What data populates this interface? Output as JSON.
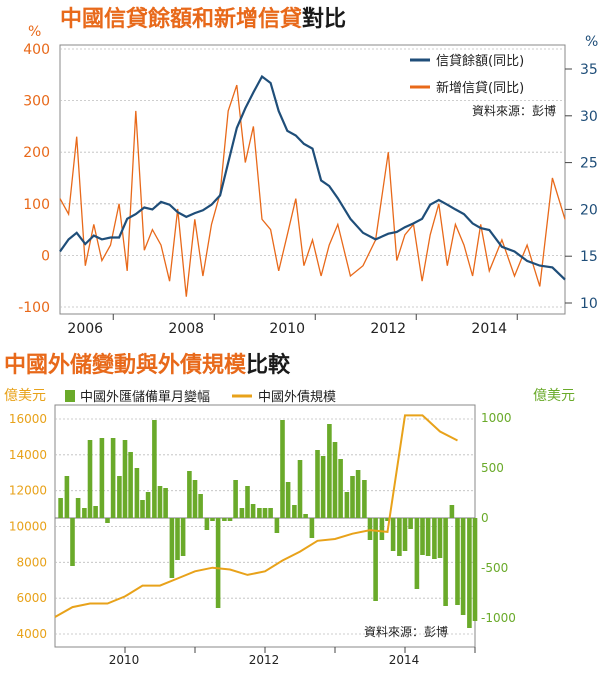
{
  "chart_data": [
    {
      "type": "line",
      "title_part1": "中國信貸餘額和新增信貸",
      "title_part2": "對比",
      "left_unit": "%",
      "right_unit": "%",
      "source": "資料來源：彭博",
      "x_ticks": [
        "2006",
        "2008",
        "2010",
        "2012",
        "2014"
      ],
      "y_left_ticks": [
        "400",
        "300",
        "200",
        "100",
        "0",
        "-100"
      ],
      "y_right_ticks": [
        "35",
        "30",
        "25",
        "20",
        "15",
        "10"
      ],
      "ylim_left": [
        -100,
        400
      ],
      "ylim_right": [
        10,
        35
      ],
      "x_range": [
        2005.5,
        2015.5
      ],
      "grid": true,
      "legend_position": "top-right",
      "series": [
        {
          "name": "信貸餘額(同比)",
          "axis": "right",
          "color": "#1f4e79",
          "x": [
            2005.5,
            2005.67,
            2005.83,
            2006.0,
            2006.17,
            2006.33,
            2006.5,
            2006.67,
            2006.83,
            2007.0,
            2007.17,
            2007.33,
            2007.5,
            2007.67,
            2007.83,
            2008.0,
            2008.17,
            2008.33,
            2008.5,
            2008.67,
            2008.83,
            2009.0,
            2009.17,
            2009.33,
            2009.5,
            2009.67,
            2009.83,
            2010.0,
            2010.17,
            2010.33,
            2010.5,
            2010.67,
            2010.83,
            2011.0,
            2011.25,
            2011.5,
            2011.75,
            2012.0,
            2012.17,
            2012.33,
            2012.5,
            2012.67,
            2012.83,
            2013.0,
            2013.17,
            2013.33,
            2013.5,
            2013.67,
            2013.83,
            2014.0,
            2014.25,
            2014.5,
            2014.75,
            2015.0,
            2015.25,
            2015.5
          ],
          "values": [
            15.5,
            16.8,
            17.5,
            16.3,
            17.2,
            16.8,
            17.0,
            17.0,
            19.0,
            19.5,
            20.2,
            20.0,
            20.8,
            20.5,
            19.7,
            19.2,
            19.6,
            19.9,
            20.5,
            21.5,
            25.0,
            28.7,
            30.8,
            32.5,
            34.2,
            33.5,
            30.5,
            28.4,
            27.9,
            27.0,
            26.5,
            23.1,
            22.5,
            21.2,
            19.0,
            17.5,
            16.8,
            17.4,
            17.6,
            18.1,
            18.5,
            19.0,
            20.5,
            21.0,
            20.5,
            20.0,
            19.5,
            18.5,
            18.0,
            17.8,
            16.0,
            15.5,
            14.5,
            14.0,
            13.8,
            12.5
          ],
          "_comment_values": "approximate reading from chart"
        },
        {
          "name": "新增信貸(同比)",
          "axis": "left",
          "color": "#e8691a",
          "x": [
            2005.5,
            2005.67,
            2005.83,
            2006.0,
            2006.17,
            2006.33,
            2006.5,
            2006.67,
            2006.83,
            2007.0,
            2007.17,
            2007.33,
            2007.5,
            2007.67,
            2007.83,
            2008.0,
            2008.17,
            2008.33,
            2008.5,
            2008.67,
            2008.83,
            2009.0,
            2009.17,
            2009.33,
            2009.5,
            2009.67,
            2009.83,
            2010.0,
            2010.17,
            2010.33,
            2010.5,
            2010.67,
            2010.83,
            2011.0,
            2011.25,
            2011.5,
            2011.75,
            2012.0,
            2012.17,
            2012.33,
            2012.5,
            2012.67,
            2012.83,
            2013.0,
            2013.17,
            2013.33,
            2013.5,
            2013.67,
            2013.83,
            2014.0,
            2014.25,
            2014.5,
            2014.75,
            2015.0,
            2015.25,
            2015.5
          ],
          "values": [
            110,
            80,
            230,
            -20,
            60,
            -10,
            20,
            100,
            -30,
            280,
            10,
            50,
            20,
            -50,
            90,
            -80,
            70,
            -40,
            60,
            120,
            280,
            330,
            180,
            250,
            70,
            50,
            -30,
            40,
            110,
            -20,
            30,
            -40,
            20,
            60,
            -40,
            -20,
            30,
            200,
            -10,
            40,
            60,
            -50,
            40,
            100,
            -20,
            60,
            20,
            -40,
            60,
            -30,
            30,
            -40,
            20,
            -60,
            150,
            70
          ],
          "_comment_values": "approximate reading from chart"
        }
      ]
    },
    {
      "type": "bar",
      "title_part1": "中國外儲變動與外債規模",
      "title_part2": "比較",
      "left_unit": "億美元",
      "right_unit": "億美元",
      "source": "資料來源：彭博",
      "x_ticks": [
        "2010",
        "2012",
        "2014"
      ],
      "y_left_ticks": [
        "16000",
        "14000",
        "12000",
        "10000",
        "8000",
        "6000",
        "4000"
      ],
      "y_right_ticks": [
        "1000",
        "500",
        "0",
        "-500",
        "-1000"
      ],
      "ylim_left": [
        4000,
        16800
      ],
      "ylim_right": [
        -1200,
        1050
      ],
      "x_range": [
        2009.5,
        2015.5
      ],
      "grid": true,
      "legend_position": "top",
      "series": [
        {
          "name": "中國外匯儲備單月變幅",
          "axis": "right",
          "color": "#6aaa2a",
          "x": [
            2009.58,
            2009.67,
            2009.75,
            2009.83,
            2009.92,
            2010.0,
            2010.08,
            2010.17,
            2010.25,
            2010.33,
            2010.42,
            2010.5,
            2010.58,
            2010.67,
            2010.75,
            2010.83,
            2010.92,
            2011.0,
            2011.08,
            2011.17,
            2011.25,
            2011.33,
            2011.42,
            2011.5,
            2011.58,
            2011.67,
            2011.75,
            2011.83,
            2011.92,
            2012.0,
            2012.08,
            2012.17,
            2012.25,
            2012.33,
            2012.42,
            2012.5,
            2012.58,
            2012.67,
            2012.75,
            2012.83,
            2012.92,
            2013.0,
            2013.08,
            2013.17,
            2013.25,
            2013.33,
            2013.42,
            2013.5,
            2013.58,
            2013.67,
            2013.75,
            2013.83,
            2013.92,
            2014.0,
            2014.08,
            2014.17,
            2014.25,
            2014.33,
            2014.42,
            2014.5,
            2014.58,
            2014.67,
            2014.75,
            2014.83,
            2014.92,
            2015.0,
            2015.08,
            2015.17,
            2015.25,
            2015.33,
            2015.42,
            2015.5
          ],
          "values": [
            200,
            420,
            -480,
            200,
            100,
            780,
            120,
            800,
            -50,
            800,
            420,
            780,
            660,
            500,
            180,
            260,
            980,
            320,
            300,
            -600,
            -420,
            -380,
            470,
            380,
            240,
            -120,
            -30,
            -900,
            -30,
            -30,
            380,
            100,
            320,
            140,
            100,
            100,
            100,
            -150,
            980,
            360,
            130,
            580,
            40,
            -200,
            680,
            620,
            940,
            760,
            590,
            260,
            420,
            480,
            380,
            -220,
            -830,
            -220,
            -30,
            -330,
            -380,
            -330,
            -110,
            -710,
            -370,
            -380,
            -410,
            -400,
            -880,
            130,
            -870,
            -970,
            -1100,
            -1030
          ],
          "_comment_values": "approximate reading from chart"
        },
        {
          "name": "中國外債規模",
          "axis": "left",
          "color": "#e8a21a",
          "x": [
            2009.5,
            2009.75,
            2010.0,
            2010.25,
            2010.5,
            2010.75,
            2011.0,
            2011.25,
            2011.5,
            2011.75,
            2012.0,
            2012.25,
            2012.5,
            2012.75,
            2013.0,
            2013.25,
            2013.5,
            2013.75,
            2014.0,
            2014.25,
            2014.5,
            2014.75,
            2015.0,
            2015.25
          ],
          "values": [
            4950,
            5500,
            5700,
            5700,
            6100,
            6700,
            6700,
            7100,
            7500,
            7700,
            7600,
            7300,
            7500,
            8100,
            8600,
            9200,
            9300,
            9600,
            9800,
            9700,
            16200,
            16200,
            15300,
            14800
          ],
          "_comment_values": "approximate reading from chart"
        }
      ]
    }
  ]
}
